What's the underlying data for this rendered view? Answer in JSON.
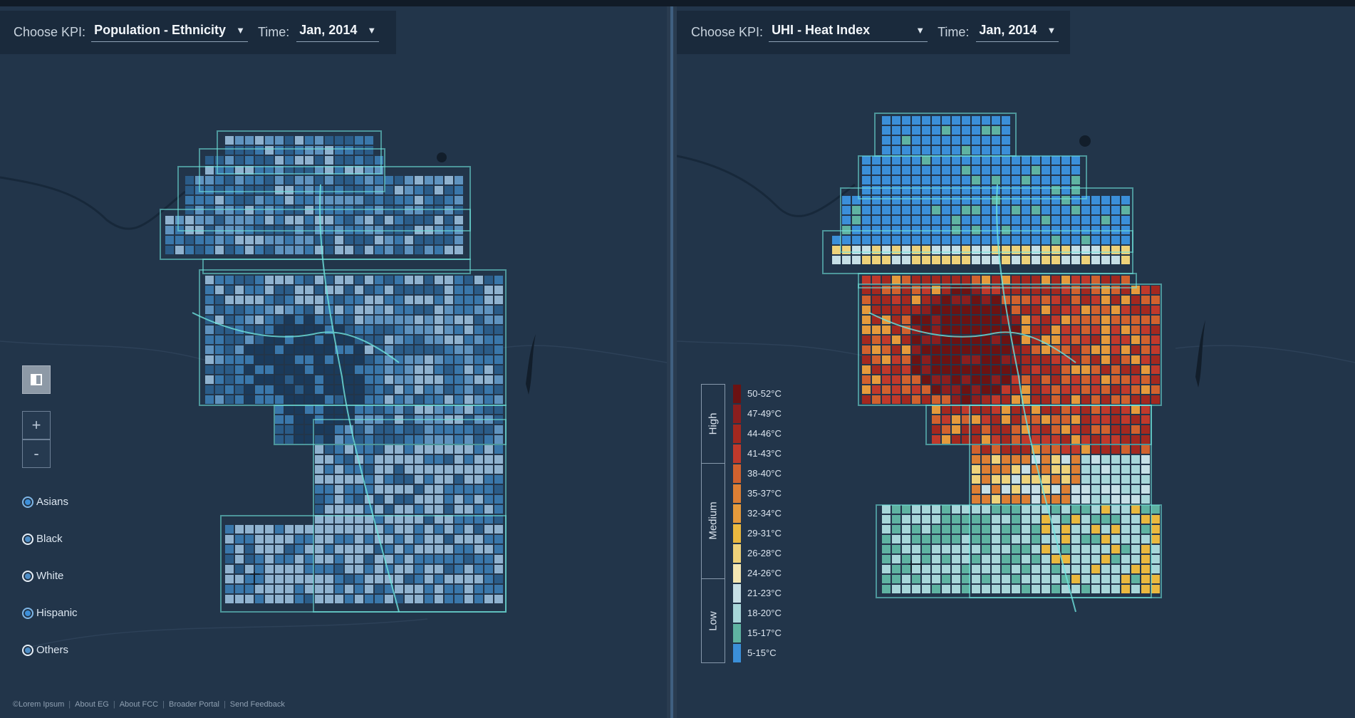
{
  "left_panel": {
    "kpi_label": "Choose KPI:",
    "kpi_value": "Population - Ethnicity",
    "time_label": "Time:",
    "time_value": "Jan, 2014",
    "layer_toggle_icon": "layers-icon",
    "zoom_in": "+",
    "zoom_out": "-",
    "ethnicities": [
      {
        "label": "Asians",
        "selected": true
      },
      {
        "label": "Black",
        "selected": false
      },
      {
        "label": "White",
        "selected": false
      },
      {
        "label": "Hispanic",
        "selected": true
      },
      {
        "label": "Others",
        "selected": false
      }
    ],
    "palette": [
      "#1b3a5a",
      "#2b5c88",
      "#3a77aa",
      "#5f93bf",
      "#8fb2cf"
    ]
  },
  "right_panel": {
    "kpi_label": "Choose KPI:",
    "kpi_value": "UHI - Heat Index",
    "time_label": "Time:",
    "time_value": "Jan, 2014",
    "legend": {
      "categories": [
        "High",
        "Medium",
        "Low"
      ],
      "items": [
        {
          "label": "50-52°C",
          "color": "#6b1212"
        },
        {
          "label": "47-49°C",
          "color": "#8b1e1e"
        },
        {
          "label": "44-46°C",
          "color": "#a3281f"
        },
        {
          "label": "41-43°C",
          "color": "#c0392b"
        },
        {
          "label": "38-40°C",
          "color": "#d1612e"
        },
        {
          "label": "35-37°C",
          "color": "#dd7f34"
        },
        {
          "label": "32-34°C",
          "color": "#e59a3c"
        },
        {
          "label": "29-31°C",
          "color": "#eab83f"
        },
        {
          "label": "26-28°C",
          "color": "#eed27a"
        },
        {
          "label": "24-26°C",
          "color": "#f3e6b2"
        },
        {
          "label": "21-23°C",
          "color": "#c6dfe6"
        },
        {
          "label": "18-20°C",
          "color": "#a7d6d9"
        },
        {
          "label": "15-17°C",
          "color": "#5fb3a2"
        },
        {
          "label": "5-15°C",
          "color": "#3b8fd9"
        }
      ]
    }
  },
  "footer": {
    "links": [
      "©Lorem Ipsum",
      "About EG",
      "About FCC",
      "Broader Portal",
      "Send Feedback"
    ]
  },
  "colors": {
    "city_outline": "#6fe3dd",
    "map_background": "#22354a",
    "blue_fill": "#3e86c8",
    "teal_fill": "#5fb3a2"
  }
}
